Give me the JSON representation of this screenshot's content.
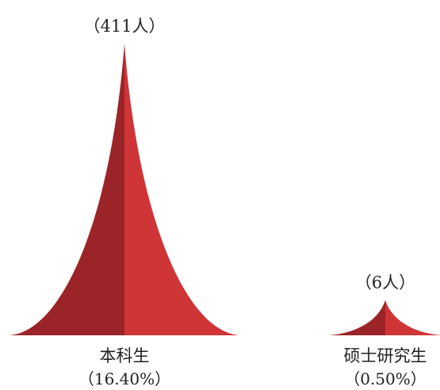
{
  "chart_data": {
    "type": "bar",
    "categories": [
      "本科生",
      "硕士研究生"
    ],
    "values": [
      411,
      6
    ],
    "percentages": [
      "16.40%",
      "0.50%"
    ],
    "value_labels": [
      "（411人）",
      "（6人）"
    ],
    "percent_labels": [
      "（16.40%）",
      "（0.50%）"
    ],
    "title": "",
    "xlabel": "",
    "ylabel": "",
    "grid": false,
    "colors": {
      "dark": "#9b2428",
      "light": "#cf3437"
    }
  }
}
